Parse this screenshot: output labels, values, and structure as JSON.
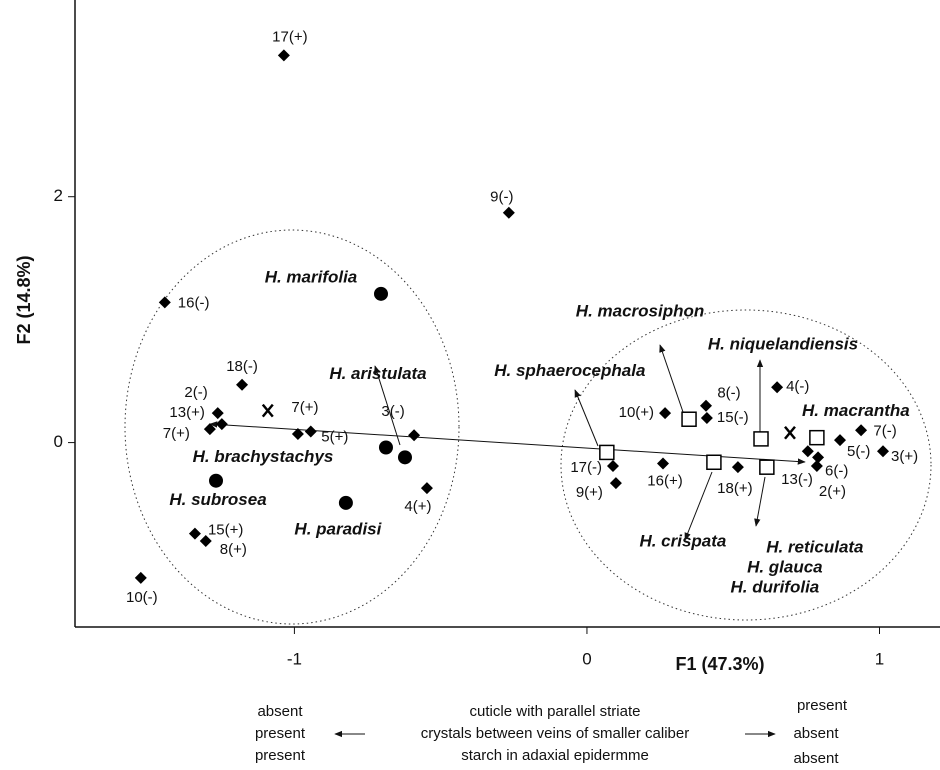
{
  "chart_data": {
    "type": "scatter",
    "xlabel": "F1 (47.3%)",
    "ylabel": "F2 (14.8%)",
    "xlim": [
      -1.75,
      1.2
    ],
    "ylim": [
      -1.5,
      3.6
    ],
    "xticks": [
      -1,
      0,
      1
    ],
    "yticks": [
      0,
      2
    ],
    "series": [
      {
        "marker": "diamond",
        "color": "#000000",
        "labels": [
          "17(+)",
          "9(-)",
          "16(-)",
          "18(-)",
          "2(-)",
          "13(+)",
          "7(+)",
          "7(+)",
          "5(+)",
          "3(-)",
          "4(+)",
          "15(+)",
          "8(+)",
          "10(-)",
          "10(+)",
          "8(-)",
          "15(-)",
          "4(-)",
          "7(-)",
          "3(+)",
          "5(-)",
          "6(-)",
          "2(+)",
          "13(-)",
          "17(-)",
          "9(+)",
          "16(+)",
          "18(+)"
        ],
        "x": [
          -1.036,
          -0.267,
          -1.443,
          -1.179,
          -1.262,
          -1.248,
          -1.289,
          -0.988,
          -0.944,
          -0.591,
          -0.547,
          -1.34,
          -1.303,
          -1.525,
          0.267,
          0.407,
          0.41,
          0.65,
          0.937,
          1.012,
          0.865,
          0.79,
          0.786,
          0.755,
          0.089,
          0.099,
          0.26,
          0.516
        ],
        "y": [
          3.15,
          1.87,
          1.14,
          0.47,
          0.24,
          0.15,
          0.11,
          0.07,
          0.09,
          0.06,
          -0.37,
          -0.74,
          -0.8,
          -1.1,
          0.24,
          0.3,
          0.2,
          0.45,
          0.1,
          -0.07,
          0.02,
          -0.12,
          -0.19,
          -0.07,
          -0.19,
          -0.33,
          -0.17,
          -0.2
        ]
      },
      {
        "marker": "circle",
        "color": "#000000",
        "labels": [
          "H. marifolia",
          "H. brachystachys",
          "H. aristulata",
          "H. subrosea",
          "H. paradisi"
        ],
        "x": [
          -0.704,
          -0.687,
          -0.622,
          -1.268,
          -0.824
        ],
        "y": [
          1.21,
          -0.04,
          -0.12,
          -0.31,
          -0.49
        ]
      },
      {
        "marker": "square",
        "color": "#000000",
        "labels": [
          "H. macrosiphon",
          "H. niquelandiensis",
          "H. macrantha",
          "H. sphaerocephala",
          "H. crispata",
          [
            "H. reticulata",
            "H. glauca",
            "H. durifolia"
          ]
        ],
        "x": [
          0.349,
          0.595,
          0.786,
          0.068,
          0.434,
          0.615
        ],
        "y": [
          0.19,
          0.03,
          0.04,
          -0.08,
          -0.16,
          -0.2
        ]
      },
      {
        "marker": "x",
        "color": "#000000",
        "x": [
          -1.091,
          0.694
        ],
        "y": [
          0.26,
          0.08
        ]
      }
    ],
    "footer": {
      "negative": [
        "absent",
        "present",
        "present"
      ],
      "characters": [
        "cuticle with parallel striate",
        "crystals between veins of smaller caliber",
        "starch in adaxial epidermme"
      ],
      "positive": [
        "present",
        "absent",
        "absent"
      ]
    }
  }
}
